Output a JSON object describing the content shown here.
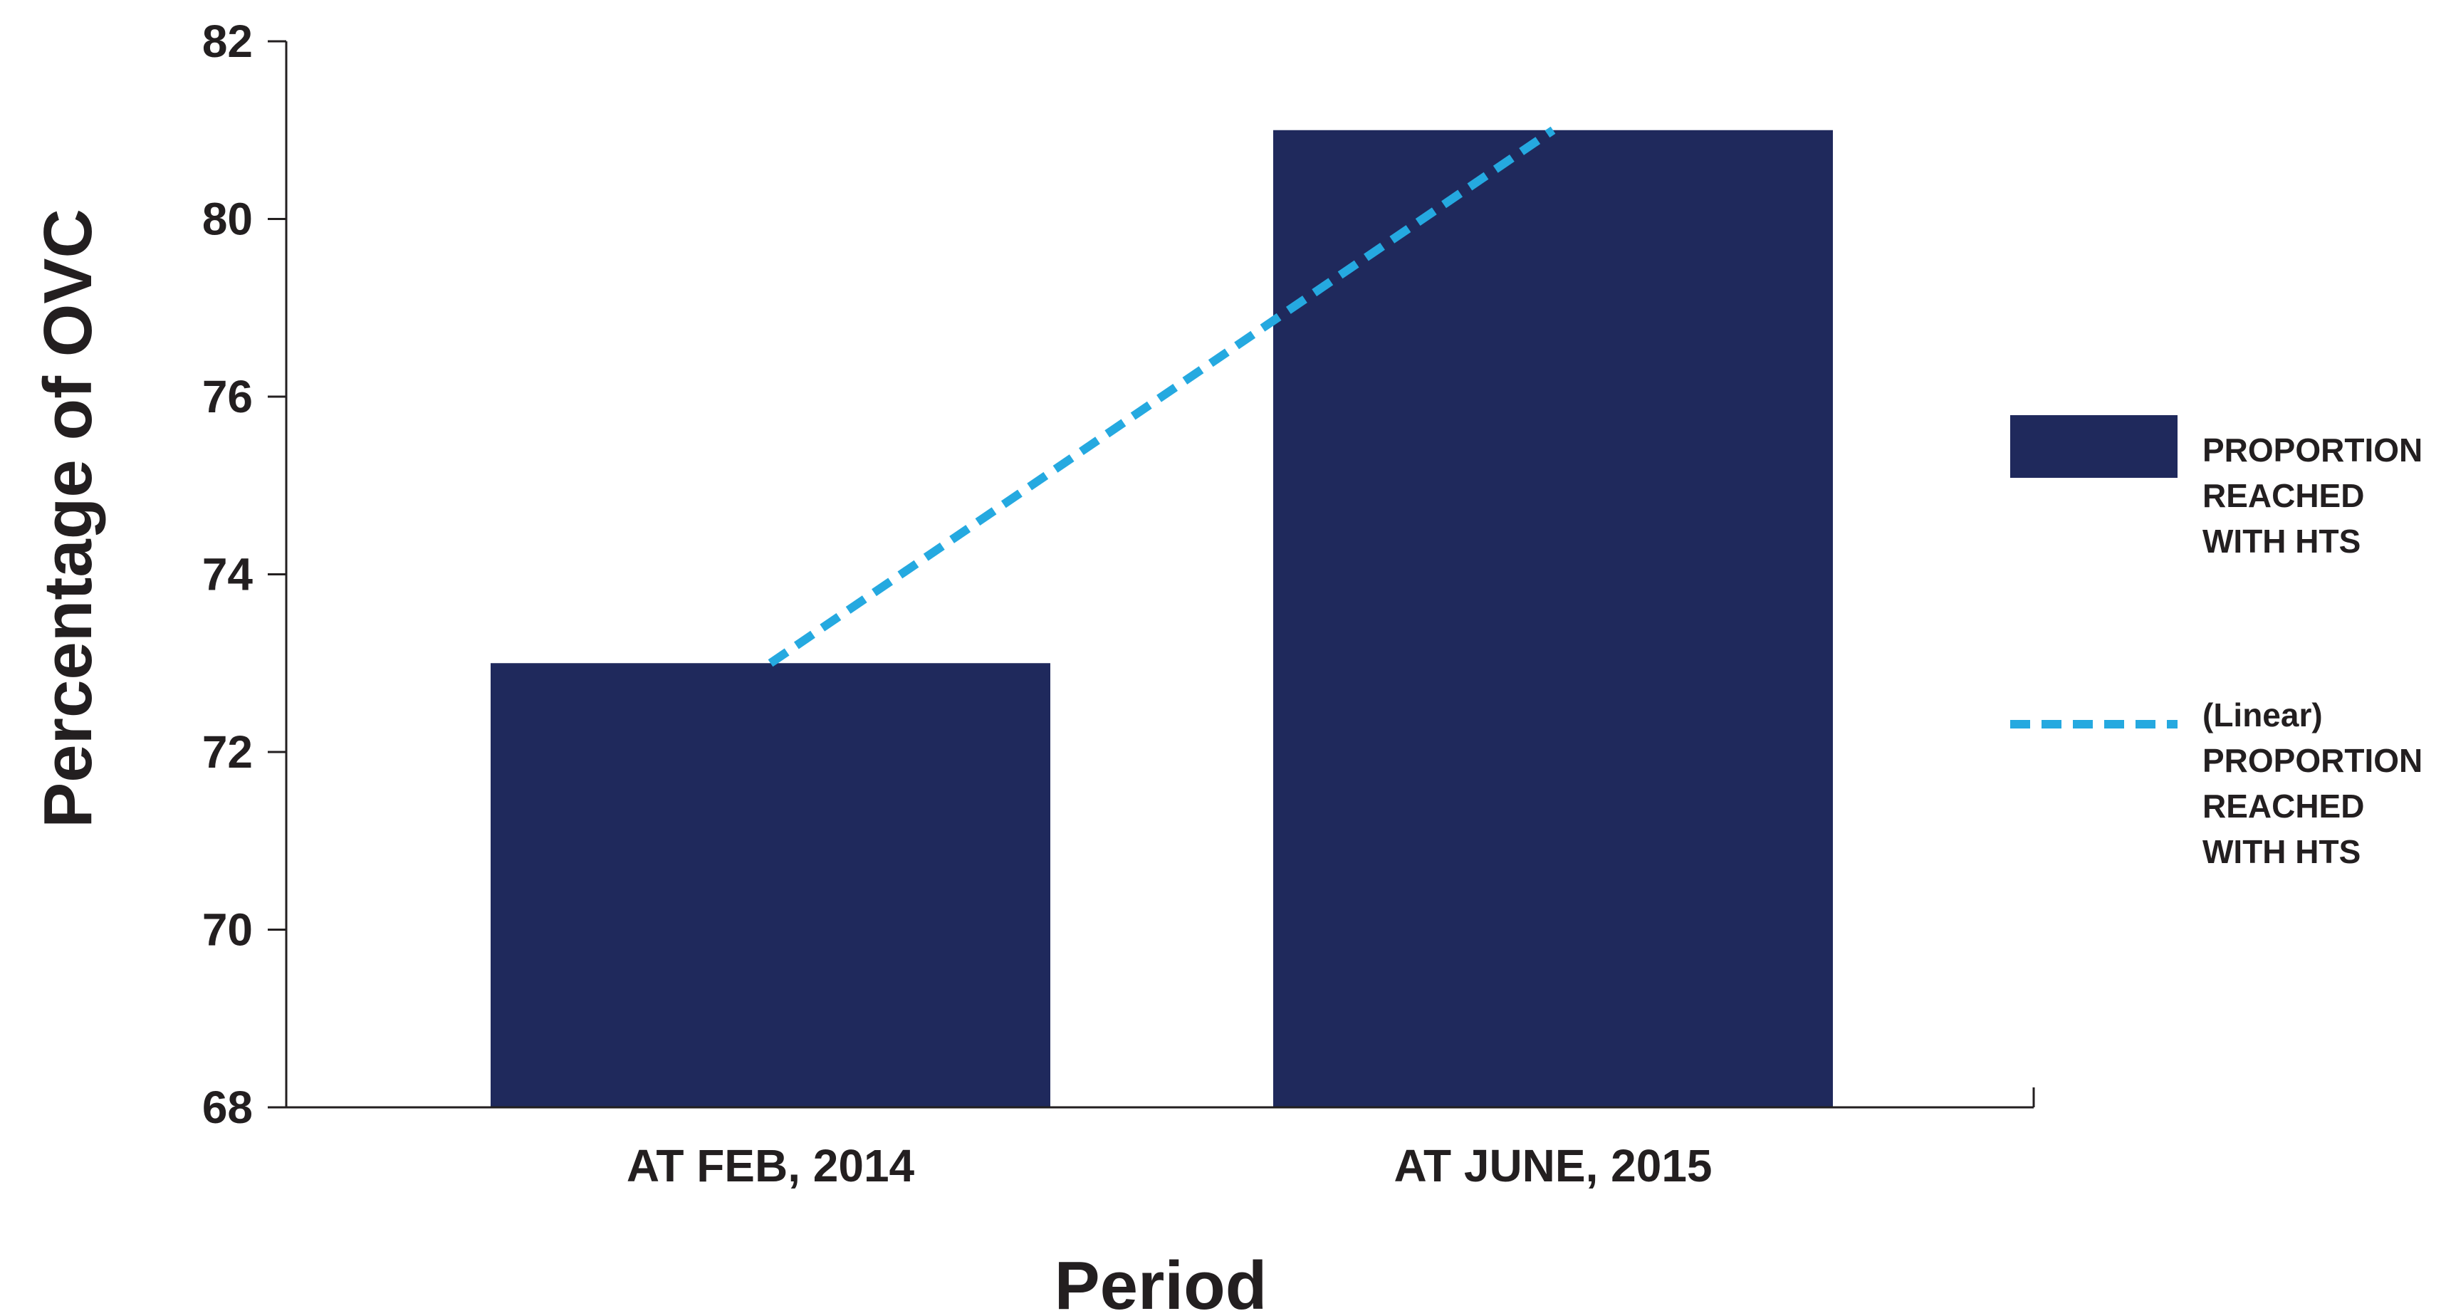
{
  "chart_data": {
    "type": "bar",
    "categories": [
      "AT FEB, 2014",
      "AT JUNE, 2015"
    ],
    "series": [
      {
        "name": "PROPORTION REACHED WITH HTS",
        "values": [
          73,
          81
        ],
        "color": "#1f295c"
      }
    ],
    "trendline": {
      "name": "(Linear) PROPORTION REACHED WITH HTS",
      "type": "linear",
      "style": "dashed",
      "color": "#25a9e0",
      "points": [
        {
          "category": "AT FEB, 2014",
          "value": 73
        },
        {
          "category": "AT JUNE, 2015",
          "value": 81
        }
      ]
    },
    "title": "",
    "xlabel": "Period",
    "ylabel": "Percentage of OVC",
    "ylim": [
      68,
      82
    ],
    "y_ticks": [
      {
        "value": 68,
        "label": "68"
      },
      {
        "value": 70,
        "label": "70"
      },
      {
        "value": 72,
        "label": "72"
      },
      {
        "value": 74,
        "label": "74"
      },
      {
        "value": 76,
        "label": "76"
      },
      {
        "value": 80,
        "label": "80"
      },
      {
        "value": 82,
        "label": "82"
      }
    ],
    "legend": {
      "placement": "right",
      "entries": [
        {
          "lines": [
            "PROPORTION",
            "REACHED",
            "WITH HTS"
          ],
          "marker": "box"
        },
        {
          "lines": [
            "(Linear)",
            "PROPORTION",
            "REACHED",
            "WITH HTS"
          ],
          "marker": "dashed-line"
        }
      ]
    },
    "grid": false
  }
}
